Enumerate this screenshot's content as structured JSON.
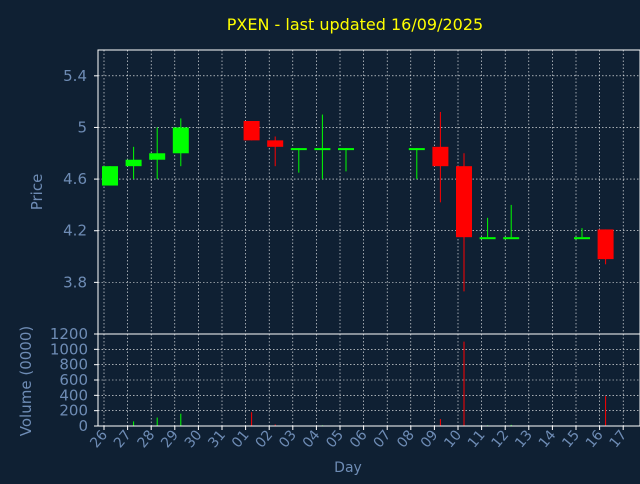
{
  "colors": {
    "background": "#0f2033",
    "title": "#ffff00",
    "axis_text": "#6e8cb5",
    "frame": "#ffffff",
    "grid": "#ffffff",
    "up": "#00ff00",
    "down": "#ff0000"
  },
  "chart_data": [
    {
      "type": "candlestick",
      "title": "PXEN - last updated 16/09/2025",
      "ylabel": "Price",
      "ylim": [
        3.4,
        5.6
      ],
      "yticks": [
        "5.4",
        "5",
        "4.6",
        "4.2",
        "3.8"
      ],
      "ytick_values": [
        5.4,
        5.0,
        4.6,
        4.2,
        3.8
      ],
      "grid": true,
      "days": [
        "26",
        "27",
        "28",
        "29",
        "30",
        "31",
        "01",
        "02",
        "03",
        "04",
        "05",
        "06",
        "07",
        "08",
        "09",
        "10",
        "11",
        "12",
        "13",
        "14",
        "15",
        "16",
        "17"
      ],
      "candles": [
        {
          "day": "26",
          "open": 4.55,
          "high": 4.7,
          "low": 4.55,
          "close": 4.7
        },
        {
          "day": "27",
          "open": 4.7,
          "high": 4.85,
          "low": 4.6,
          "close": 4.75
        },
        {
          "day": "28",
          "open": 4.75,
          "high": 5.0,
          "low": 4.6,
          "close": 4.8
        },
        {
          "day": "29",
          "open": 4.8,
          "high": 5.07,
          "low": 4.7,
          "close": 5.0
        },
        {
          "day": "01",
          "open": 5.05,
          "high": 5.05,
          "low": 4.9,
          "close": 4.9
        },
        {
          "day": "02",
          "open": 4.9,
          "high": 4.93,
          "low": 4.7,
          "close": 4.85
        },
        {
          "day": "03",
          "open": 4.84,
          "high": 4.84,
          "low": 4.65,
          "close": 4.84
        },
        {
          "day": "04",
          "open": 4.84,
          "high": 5.1,
          "low": 4.6,
          "close": 4.84
        },
        {
          "day": "05",
          "open": 4.84,
          "high": 4.84,
          "low": 4.66,
          "close": 4.84
        },
        {
          "day": "08",
          "open": 4.84,
          "high": 4.84,
          "low": 4.6,
          "close": 4.84
        },
        {
          "day": "09",
          "open": 4.85,
          "high": 5.12,
          "low": 4.42,
          "close": 4.7
        },
        {
          "day": "10",
          "open": 4.7,
          "high": 4.8,
          "low": 3.73,
          "close": 4.15
        },
        {
          "day": "11",
          "open": 4.15,
          "high": 4.3,
          "low": 4.15,
          "close": 4.15
        },
        {
          "day": "12",
          "open": 4.15,
          "high": 4.4,
          "low": 4.15,
          "close": 4.15
        },
        {
          "day": "15",
          "open": 4.15,
          "high": 4.22,
          "low": 4.15,
          "close": 4.15
        },
        {
          "day": "16",
          "open": 4.21,
          "high": 4.21,
          "low": 3.94,
          "close": 3.98
        }
      ]
    },
    {
      "type": "bar",
      "ylabel": "Volume (0000)",
      "xlabel": "Day",
      "ylim": [
        0,
        1200
      ],
      "yticks": [
        "1200",
        "1000",
        "800",
        "600",
        "400",
        "200",
        "0"
      ],
      "ytick_values": [
        1200,
        1000,
        800,
        600,
        400,
        200,
        0
      ],
      "grid": true,
      "bars": [
        {
          "day": "26",
          "value": 5,
          "direction": "up"
        },
        {
          "day": "27",
          "value": 60,
          "direction": "up"
        },
        {
          "day": "28",
          "value": 110,
          "direction": "up"
        },
        {
          "day": "29",
          "value": 160,
          "direction": "up"
        },
        {
          "day": "01",
          "value": 180,
          "direction": "down"
        },
        {
          "day": "02",
          "value": 20,
          "direction": "down"
        },
        {
          "day": "03",
          "value": 5,
          "direction": "up"
        },
        {
          "day": "04",
          "value": 10,
          "direction": "up"
        },
        {
          "day": "05",
          "value": 5,
          "direction": "up"
        },
        {
          "day": "08",
          "value": 5,
          "direction": "up"
        },
        {
          "day": "09",
          "value": 90,
          "direction": "down"
        },
        {
          "day": "10",
          "value": 1100,
          "direction": "down"
        },
        {
          "day": "11",
          "value": 10,
          "direction": "up"
        },
        {
          "day": "12",
          "value": 15,
          "direction": "up"
        },
        {
          "day": "15",
          "value": 5,
          "direction": "up"
        },
        {
          "day": "16",
          "value": 390,
          "direction": "down"
        }
      ]
    }
  ]
}
